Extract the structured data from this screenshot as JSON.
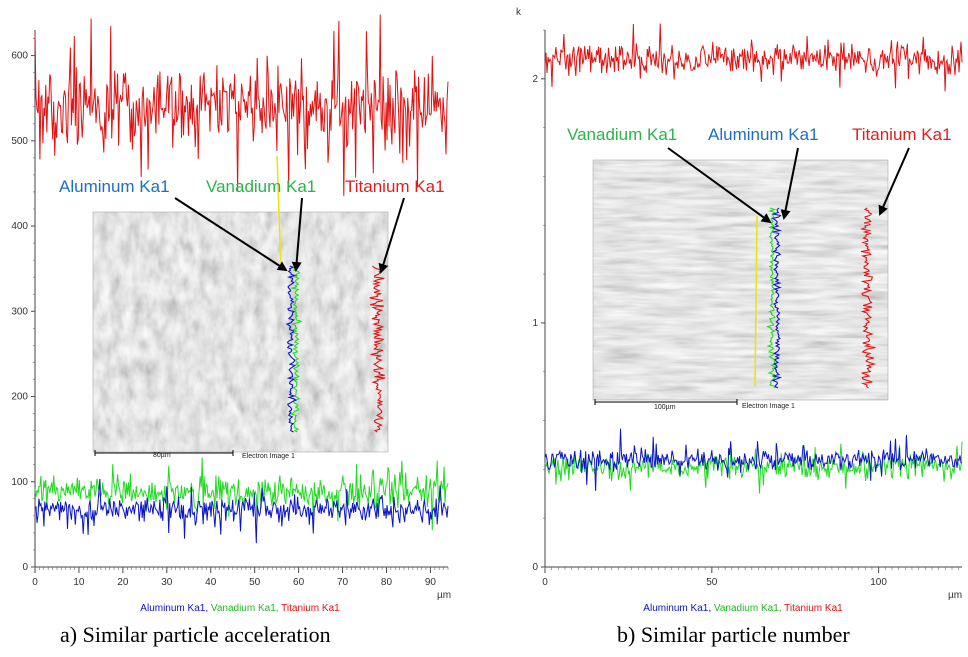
{
  "colors": {
    "aluminum": "#0a14c8",
    "vanadium": "#22d922",
    "titanium": "#e01212",
    "annotation_aluminum": "#1d6fc4",
    "annotation_vanadium": "#2ab54a",
    "annotation_titanium": "#e02020",
    "scan_line": "#f0e020"
  },
  "captions": {
    "a": "a) Similar particle acceleration",
    "b": "b) Similar  particle number"
  },
  "chart_data": [
    {
      "type": "line",
      "panel": "a",
      "x_unit": "µm",
      "xlim": [
        0,
        94
      ],
      "ylim": [
        0,
        630
      ],
      "x_ticks": [
        "0",
        "10",
        "20",
        "30",
        "40",
        "50",
        "60",
        "70",
        "80",
        "90"
      ],
      "y_ticks": [
        "0",
        "100",
        "200",
        "300",
        "400",
        "500",
        "600"
      ],
      "grid": false,
      "legend": {
        "position": "bottom-center",
        "items": [
          "Aluminum Ka1",
          "Vanadium Ka1",
          "Titanium Ka1"
        ],
        "separator": ", "
      },
      "series": [
        {
          "name": "Titanium Ka1",
          "mean": 540,
          "noise": 32
        },
        {
          "name": "Vanadium Ka1",
          "mean": 88,
          "noise": 13
        },
        {
          "name": "Aluminum Ka1",
          "mean": 68,
          "noise": 10
        }
      ],
      "annotations": [
        "Aluminum Ka1",
        "Vanadium Ka1",
        "Titanium Ka1"
      ],
      "inset": {
        "scale_bar": "80µm",
        "caption": "Electron Image 1"
      }
    },
    {
      "type": "line",
      "panel": "b",
      "x_unit": "µm",
      "y_unit": "k",
      "xlim": [
        0,
        125
      ],
      "ylim": [
        0,
        2.2
      ],
      "x_ticks": [
        "0",
        "50",
        "100"
      ],
      "y_ticks": [
        "0",
        "1",
        "2"
      ],
      "grid": false,
      "legend": {
        "position": "bottom-center",
        "items": [
          "Aluminum Ka1",
          "Vanadium Ka1",
          "Titanium Ka1"
        ],
        "separator": ", "
      },
      "series": [
        {
          "name": "Titanium Ka1",
          "mean": 2.08,
          "noise": 0.045
        },
        {
          "name": "Vanadium Ka1",
          "mean": 0.41,
          "noise": 0.035
        },
        {
          "name": "Aluminum Ka1",
          "mean": 0.44,
          "noise": 0.032
        }
      ],
      "annotations": [
        "Vanadium Ka1",
        "Aluminum Ka1",
        "Titanium Ka1"
      ],
      "inset": {
        "scale_bar": "100µm",
        "caption": "Electron Image 1"
      }
    }
  ]
}
